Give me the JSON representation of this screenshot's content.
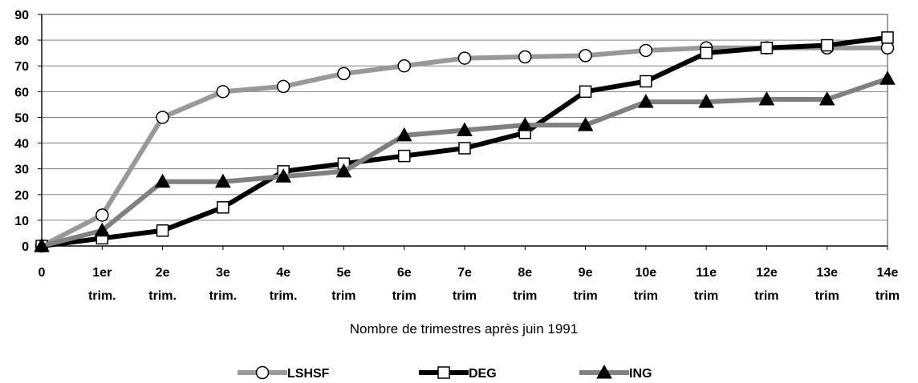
{
  "chart_data": {
    "type": "line",
    "title": "",
    "xlabel": "Nombre de trimestres après juin 1991",
    "ylabel": "",
    "ylim": [
      0,
      90
    ],
    "yticks": [
      0,
      10,
      20,
      30,
      40,
      50,
      60,
      70,
      80,
      90
    ],
    "grid": true,
    "legend_position": "bottom",
    "categories": [
      [
        "0"
      ],
      [
        "1er",
        "trim."
      ],
      [
        "2e",
        "trim."
      ],
      [
        "3e",
        "trim."
      ],
      [
        "4e",
        "trim."
      ],
      [
        "5e",
        "trim"
      ],
      [
        "6e",
        "trim"
      ],
      [
        "7e",
        "trim"
      ],
      [
        "8e",
        "trim"
      ],
      [
        "9e",
        "trim"
      ],
      [
        "10e",
        "trim"
      ],
      [
        "11e",
        "trim"
      ],
      [
        "12e",
        "trim"
      ],
      [
        "13e",
        "trim"
      ],
      [
        "14e",
        "trim"
      ]
    ],
    "series": [
      {
        "name": "LSHSF",
        "color": "#999999",
        "marker": "circle",
        "values": [
          0,
          12,
          50,
          60,
          62,
          67,
          70,
          73,
          73.5,
          74,
          76,
          77,
          77,
          77,
          77
        ]
      },
      {
        "name": "DEG",
        "color": "#000000",
        "marker": "square",
        "values": [
          0,
          3,
          6,
          15,
          29,
          32,
          35,
          38,
          44,
          60,
          64,
          75,
          77,
          78,
          81
        ]
      },
      {
        "name": "ING",
        "color": "#808080",
        "marker": "triangle",
        "values": [
          0,
          6,
          25,
          25,
          27,
          29,
          43,
          45,
          47,
          47,
          56,
          56,
          57,
          57,
          65
        ]
      }
    ]
  }
}
